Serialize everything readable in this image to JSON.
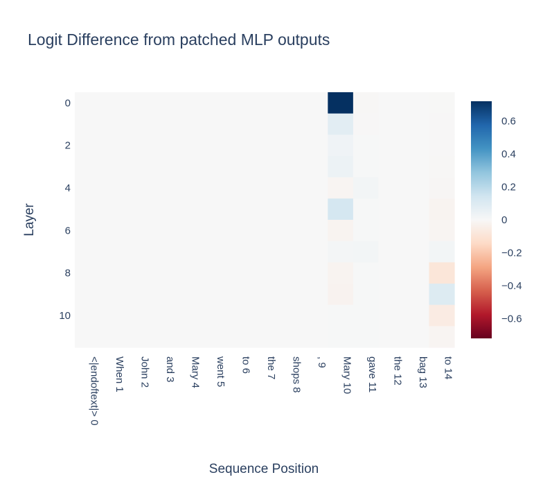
{
  "chart_data": {
    "type": "heatmap",
    "title": "Logit Difference from patched MLP outputs",
    "xlabel": "Sequence Position",
    "ylabel": "Layer",
    "x_categories": [
      "<|endoftext|> 0",
      "When 1",
      "John 2",
      "and 3",
      "Mary 4",
      "went 5",
      "to 6",
      "the 7",
      "shops 8",
      ", 9",
      "Mary 10",
      "gave 11",
      "the 12",
      "bag 13",
      "to 14"
    ],
    "y_categories": [
      0,
      1,
      2,
      3,
      4,
      5,
      6,
      7,
      8,
      9,
      10,
      11
    ],
    "y_tick_labels": [
      "0",
      "2",
      "4",
      "6",
      "8",
      "10"
    ],
    "y_tick_values": [
      0,
      2,
      4,
      6,
      8,
      10
    ],
    "colorscale": "RdBu",
    "zmin": -0.72,
    "zmax": 0.72,
    "colorbar_tick_values": [
      0.6,
      0.4,
      0.2,
      0,
      -0.2,
      -0.4,
      -0.6
    ],
    "colorbar_tick_labels": [
      "0.6",
      "0.4",
      "0.2",
      "0",
      "−0.2",
      "−0.4",
      "−0.6"
    ],
    "z": [
      [
        0,
        0,
        0,
        0,
        0,
        0,
        0,
        0,
        0,
        0,
        0.72,
        -0.005,
        0,
        0,
        -0.002
      ],
      [
        0,
        0,
        0,
        0,
        0,
        0,
        0,
        0,
        0,
        0,
        0.08,
        -0.004,
        0,
        0,
        -0.003
      ],
      [
        0,
        0,
        0,
        0,
        0,
        0,
        0,
        0,
        0,
        0,
        0.03,
        0.004,
        0,
        0,
        -0.004
      ],
      [
        0,
        0,
        0,
        0,
        0,
        0,
        0,
        0,
        0,
        0,
        0.04,
        0.003,
        0,
        0,
        -0.006
      ],
      [
        0,
        0,
        0,
        0,
        0,
        0,
        0,
        0,
        0,
        0,
        -0.015,
        0.02,
        0,
        0,
        -0.008
      ],
      [
        0,
        0,
        0,
        0,
        0,
        0,
        0,
        0,
        0,
        0,
        0.13,
        0.004,
        0,
        0,
        -0.02
      ],
      [
        0,
        0,
        0,
        0,
        0,
        0,
        0,
        0,
        0,
        0,
        -0.02,
        0.003,
        0,
        0,
        -0.015
      ],
      [
        0,
        0,
        0,
        0,
        0,
        0,
        0,
        0,
        0,
        0,
        0.015,
        0.02,
        0,
        0,
        0.02
      ],
      [
        0,
        0,
        0,
        0,
        0,
        0,
        0,
        0,
        0,
        0,
        -0.02,
        0.003,
        0,
        0,
        -0.09
      ],
      [
        0,
        0,
        0,
        0,
        0,
        0,
        0,
        0,
        0,
        0,
        -0.025,
        0.002,
        0,
        0,
        0.1
      ],
      [
        0,
        0,
        0,
        0,
        0,
        0,
        0,
        0,
        0,
        0,
        0.003,
        0.002,
        0,
        0,
        -0.06
      ],
      [
        0,
        0,
        0,
        0,
        0,
        0,
        0,
        0,
        0,
        0,
        0.002,
        0.002,
        0,
        0,
        -0.015
      ]
    ]
  }
}
